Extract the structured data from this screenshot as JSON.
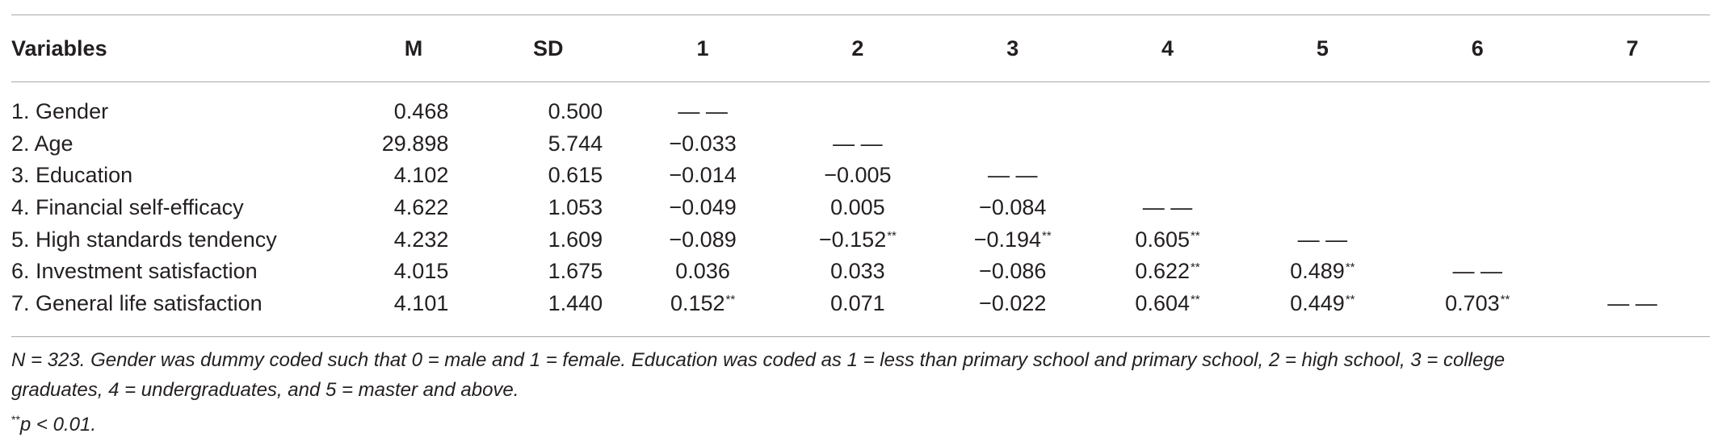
{
  "table": {
    "headers": [
      "Variables",
      "M",
      "SD",
      "1",
      "2",
      "3",
      "4",
      "5",
      "6",
      "7"
    ],
    "rows": [
      {
        "label": "1. Gender",
        "m": "0.468",
        "sd": "0.500",
        "cells": [
          {
            "v": "— —",
            "sig": ""
          },
          {
            "v": "",
            "sig": ""
          },
          {
            "v": "",
            "sig": ""
          },
          {
            "v": "",
            "sig": ""
          },
          {
            "v": "",
            "sig": ""
          },
          {
            "v": "",
            "sig": ""
          },
          {
            "v": "",
            "sig": ""
          }
        ]
      },
      {
        "label": "2. Age",
        "m": "29.898",
        "sd": "5.744",
        "cells": [
          {
            "v": "−0.033",
            "sig": ""
          },
          {
            "v": "— —",
            "sig": ""
          },
          {
            "v": "",
            "sig": ""
          },
          {
            "v": "",
            "sig": ""
          },
          {
            "v": "",
            "sig": ""
          },
          {
            "v": "",
            "sig": ""
          },
          {
            "v": "",
            "sig": ""
          }
        ]
      },
      {
        "label": "3. Education",
        "m": "4.102",
        "sd": "0.615",
        "cells": [
          {
            "v": "−0.014",
            "sig": ""
          },
          {
            "v": "−0.005",
            "sig": ""
          },
          {
            "v": "— —",
            "sig": ""
          },
          {
            "v": "",
            "sig": ""
          },
          {
            "v": "",
            "sig": ""
          },
          {
            "v": "",
            "sig": ""
          },
          {
            "v": "",
            "sig": ""
          }
        ]
      },
      {
        "label": "4. Financial self-efficacy",
        "m": "4.622",
        "sd": "1.053",
        "cells": [
          {
            "v": "−0.049",
            "sig": ""
          },
          {
            "v": "0.005",
            "sig": ""
          },
          {
            "v": "−0.084",
            "sig": ""
          },
          {
            "v": "— —",
            "sig": ""
          },
          {
            "v": "",
            "sig": ""
          },
          {
            "v": "",
            "sig": ""
          },
          {
            "v": "",
            "sig": ""
          }
        ]
      },
      {
        "label": "5. High standards tendency",
        "m": "4.232",
        "sd": "1.609",
        "cells": [
          {
            "v": "−0.089",
            "sig": ""
          },
          {
            "v": "−0.152",
            "sig": "**"
          },
          {
            "v": "−0.194",
            "sig": "**"
          },
          {
            "v": "0.605",
            "sig": "**"
          },
          {
            "v": "— —",
            "sig": ""
          },
          {
            "v": "",
            "sig": ""
          },
          {
            "v": "",
            "sig": ""
          }
        ]
      },
      {
        "label": "6. Investment satisfaction",
        "m": "4.015",
        "sd": "1.675",
        "cells": [
          {
            "v": "0.036",
            "sig": ""
          },
          {
            "v": "0.033",
            "sig": ""
          },
          {
            "v": "−0.086",
            "sig": ""
          },
          {
            "v": "0.622",
            "sig": "**"
          },
          {
            "v": "0.489",
            "sig": "**"
          },
          {
            "v": "— —",
            "sig": ""
          },
          {
            "v": "",
            "sig": ""
          }
        ]
      },
      {
        "label": "7. General life satisfaction",
        "m": "4.101",
        "sd": "1.440",
        "cells": [
          {
            "v": "0.152",
            "sig": "**"
          },
          {
            "v": "0.071",
            "sig": ""
          },
          {
            "v": "−0.022",
            "sig": ""
          },
          {
            "v": "0.604",
            "sig": "**"
          },
          {
            "v": "0.449",
            "sig": "**"
          },
          {
            "v": "0.703",
            "sig": "**"
          },
          {
            "v": "— —",
            "sig": ""
          }
        ]
      }
    ]
  },
  "notes": {
    "line1": "N = 323. Gender was dummy coded such that 0 = male and 1 = female. Education was coded as 1 = less than primary school and primary school, 2 = high school, 3 = college",
    "line2": "graduates, 4 = undergraduates, and 5 = master and above.",
    "sig_marker": "**",
    "sig_text": "p < 0.01."
  }
}
